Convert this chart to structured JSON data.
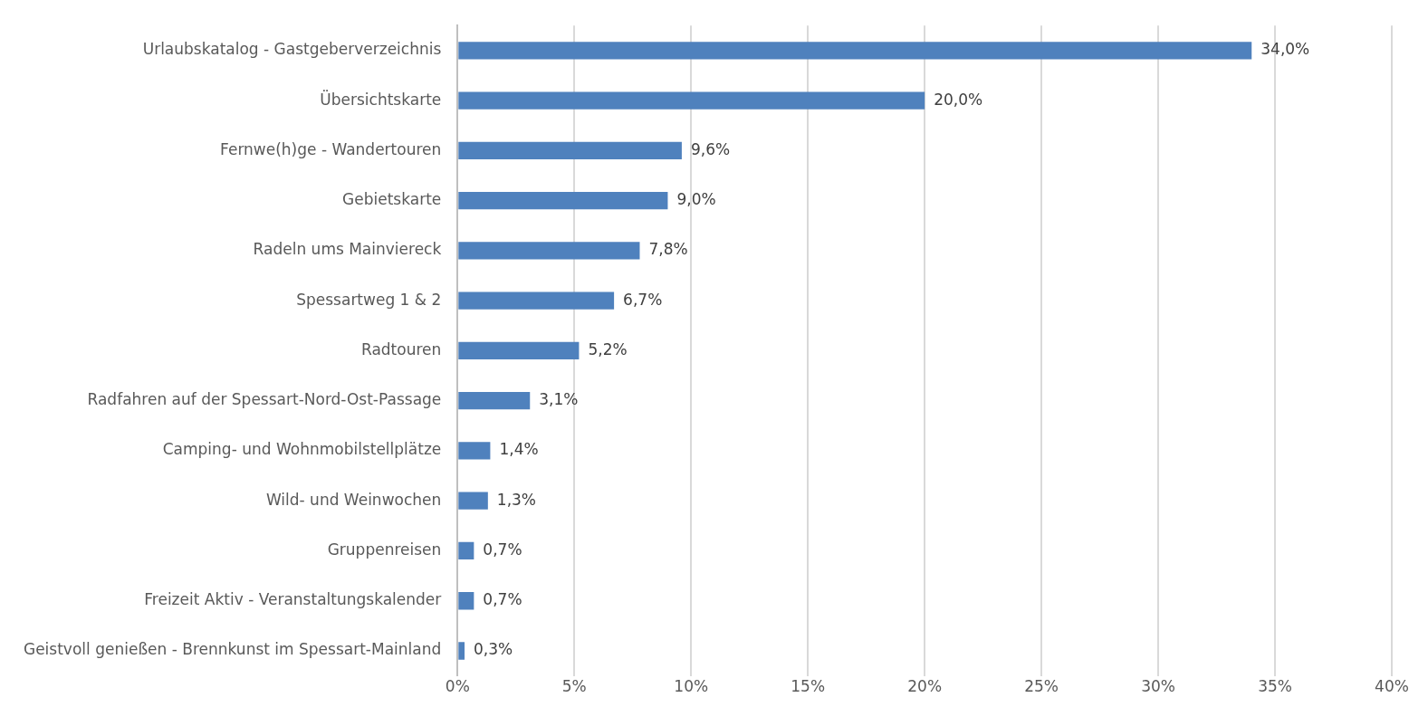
{
  "chart_data": {
    "type": "bar",
    "orientation": "horizontal",
    "categories": [
      "Urlaubskatalog - Gastgeberverzeichnis",
      "Übersichtskarte",
      "Fernwe(h)ge - Wandertouren",
      "Gebietskarte",
      "Radeln ums Mainviereck",
      "Spessartweg 1 & 2",
      "Radtouren",
      "Radfahren auf der Spessart-Nord-Ost-Passage",
      "Camping- und Wohnmobilstellplätze",
      "Wild- und Weinwochen",
      "Gruppenreisen",
      "Freizeit Aktiv - Veranstaltungskalender",
      "Geistvoll genießen - Brennkunst im Spessart-Mainland"
    ],
    "values": [
      34.0,
      20.0,
      9.6,
      9.0,
      7.8,
      6.7,
      5.2,
      3.1,
      1.4,
      1.3,
      0.7,
      0.7,
      0.3
    ],
    "value_labels": [
      "34,0%",
      "20,0%",
      "9,6%",
      "9,0%",
      "7,8%",
      "6,7%",
      "5,2%",
      "3,1%",
      "1,4%",
      "1,3%",
      "0,7%",
      "0,7%",
      "0,3%"
    ],
    "color": "#4f81bd",
    "xlim": [
      0,
      40
    ],
    "xticks": [
      {
        "value": 0,
        "label": "0%"
      },
      {
        "value": 5,
        "label": "5%"
      },
      {
        "value": 10,
        "label": "10%"
      },
      {
        "value": 15,
        "label": "15%"
      },
      {
        "value": 20,
        "label": "20%"
      },
      {
        "value": 25,
        "label": "25%"
      },
      {
        "value": 30,
        "label": "30%"
      },
      {
        "value": 35,
        "label": "35%"
      },
      {
        "value": 40,
        "label": "40%"
      }
    ],
    "grid": "x"
  }
}
